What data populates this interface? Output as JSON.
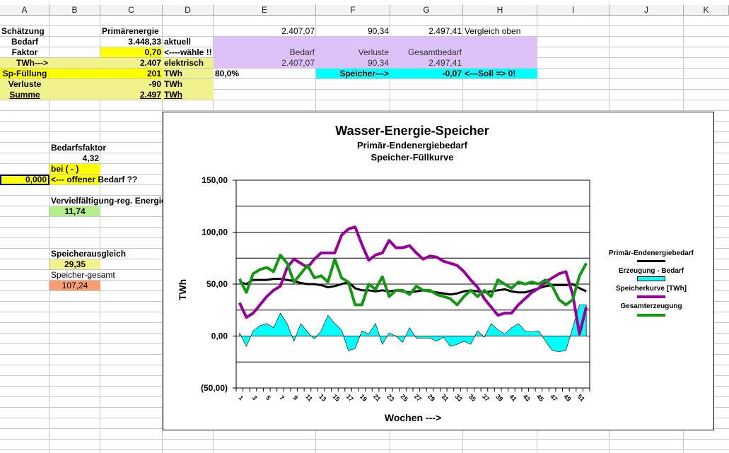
{
  "columns": [
    "A",
    "B",
    "C",
    "D",
    "E",
    "F",
    "G",
    "H",
    "I",
    "J",
    "K"
  ],
  "cells": {
    "A1": "Schätzung",
    "C1": "Primärenergie",
    "E1": "2.407,07",
    "F1": "90,34",
    "G1": "2.497,41",
    "H1": "Vergleich oben",
    "A2": "Bedarf",
    "C2": "3.448,33",
    "D2": "aktuell",
    "A3": "Faktor",
    "C3": "0,70",
    "D3": "<----wähle !!",
    "E3": "Bedarf",
    "F3": "Verluste",
    "G3": "Gesamtbedarf",
    "A4": "TWh--->",
    "C4": "2.407",
    "D4": "elektrisch",
    "E4": "2.407,07",
    "F4": "90,34",
    "G4": "2.497,41",
    "A5": "Sp-Füllung",
    "C5": "201",
    "D5": "TWh",
    "E5": "80,0%",
    "F5": "Speicher--->",
    "G5": "-0,07",
    "H5": "<---Soll => 0!",
    "A6": "Verluste",
    "C6": "-90",
    "D6": "TWh",
    "A7": "Summe",
    "C7": "2.497",
    "D7": "TWh",
    "B12": "Bedarfsfaktor",
    "B13": "4,32",
    "B14": "bei ( - )",
    "A15": "0,000",
    "B15": "<--- offener Bedarf ??",
    "B17": "Vervielfältigung-reg. Energie",
    "B18": "11,74",
    "B22": "Speicherausgleich",
    "B23": "29,35",
    "B24": "Speicher-gesamt",
    "B25": "107,24"
  },
  "colors": {
    "yellow": "#ffff00",
    "pale_yellow": "#f2f28c",
    "lavender": "#dcc2f6",
    "cyan": "#00ffff",
    "green": "#b4ee8c",
    "salmon": "#f89e72"
  },
  "chart_data": {
    "type": "line",
    "title": "Wasser-Energie-Speicher",
    "subtitle1": "Primär-Endenergiebedarf",
    "subtitle2": "Speicher-Füllkurve",
    "xlabel": "Wochen --->",
    "ylabel": "TWh",
    "ylim": [
      -50,
      150
    ],
    "ytick_values": [
      150,
      100,
      50,
      0,
      -50
    ],
    "ytick_labels": [
      "150,00",
      "100,00",
      "50,00",
      "0,00",
      "(50,00)"
    ],
    "gridlines": [
      150,
      125,
      100,
      75,
      50,
      25,
      0,
      -25,
      -50
    ],
    "xtick_labels": [
      "1",
      "3",
      "5",
      "7",
      "9",
      "11",
      "13",
      "15",
      "17",
      "19",
      "21",
      "23",
      "25",
      "27",
      "29",
      "31",
      "33",
      "35",
      "37",
      "39",
      "41",
      "43",
      "45",
      "47",
      "49",
      "51"
    ],
    "legend_position": "right",
    "series": [
      {
        "name": "Erzeugung - Bedarf",
        "kind": "area",
        "color": "#00ffff",
        "values": [
          3,
          -10,
          5,
          10,
          12,
          8,
          22,
          12,
          -5,
          12,
          4,
          -3,
          5,
          20,
          12,
          6,
          -14,
          -12,
          5,
          2,
          12,
          -8,
          3,
          0,
          -6,
          8,
          -2,
          -2,
          -2,
          -5,
          -1,
          -10,
          -8,
          -5,
          -8,
          5,
          -1,
          12,
          6,
          2,
          8,
          12,
          5,
          4,
          5,
          -5,
          -14,
          -15,
          -14,
          8,
          30,
          30
        ]
      },
      {
        "name": "Primär-Endenergiebedarf",
        "kind": "line",
        "color": "#000000",
        "values": [
          52,
          50,
          54,
          54,
          54,
          55,
          55,
          54,
          53,
          51,
          50,
          50,
          49,
          47,
          48,
          50,
          52,
          46,
          44,
          44,
          43,
          44,
          43,
          44,
          43,
          42,
          43,
          44,
          43,
          42,
          41,
          40,
          41,
          43,
          44,
          43,
          42,
          43,
          44,
          45,
          43,
          42,
          42,
          44,
          46,
          48,
          49,
          49,
          49,
          50,
          46,
          43
        ]
      },
      {
        "name": "Speicherkurve [TWh]",
        "kind": "line",
        "color": "#990099",
        "values": [
          32,
          18,
          22,
          30,
          38,
          44,
          48,
          66,
          74,
          70,
          66,
          74,
          80,
          80,
          80,
          97,
          103,
          105,
          88,
          73,
          78,
          80,
          92,
          85,
          85,
          87,
          80,
          74,
          77,
          76,
          72,
          70,
          68,
          62,
          54,
          47,
          36,
          28,
          20,
          22,
          22,
          30,
          36,
          42,
          46,
          52,
          56,
          60,
          62,
          40,
          2,
          28
        ]
      },
      {
        "name": "Gesamterzeugung",
        "kind": "line",
        "color": "#119911",
        "values": [
          55,
          42,
          60,
          64,
          66,
          62,
          78,
          70,
          52,
          60,
          68,
          56,
          58,
          52,
          74,
          56,
          52,
          30,
          30,
          50,
          45,
          57,
          38,
          44,
          44,
          40,
          48,
          44,
          44,
          40,
          38,
          36,
          30,
          38,
          44,
          38,
          44,
          38,
          54,
          50,
          46,
          52,
          50,
          52,
          50,
          54,
          48,
          35,
          30,
          35,
          58,
          70
        ]
      }
    ]
  }
}
